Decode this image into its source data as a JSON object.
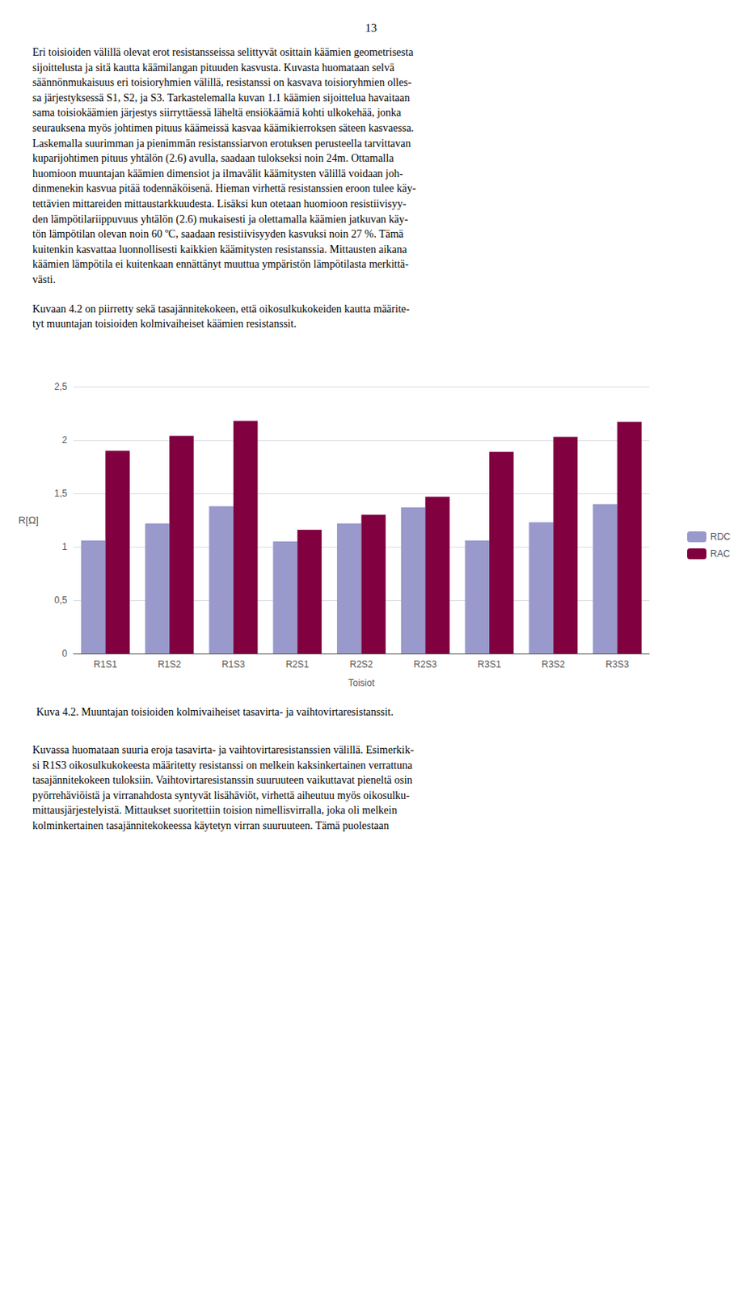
{
  "page_number": "13",
  "paragraphs_before": [
    "Eri toisioiden välillä olevat erot resistansseissa selittyvät osittain käämien geometrisesta\nsijoittelusta ja sitä kautta käämilangan pituuden kasvusta. Kuvasta huomataan selvä\nsäännönmukaisuus eri toisioryhmien välillä, resistanssi on kasvava toisioryhmien olles-\nsa järjestyksessä S1, S2, ja S3. Tarkastelemalla kuvan 1.1 käämien sijoittelua havaitaan\nsama toisiokäämien järjestys siirryttäessä läheltä ensiökäämiä kohti ulkokehää, jonka\nseurauksena myös johtimen pituus käämeissä kasvaa käämikierroksen säteen kasvaessa.\nLaskemalla suurimman ja pienimmän resistanssiarvon erotuksen perusteella tarvittavan\nkuparijohtimen pituus yhtälön (2.6) avulla, saadaan tulokseksi noin 24m. Ottamalla\nhuomioon muuntajan käämien dimensiot ja ilmavälit käämitysten välillä voidaan joh-\ndinmenekin kasvua pitää todennäköisenä. Hieman virhettä resistanssien eroon tulee käy-\ntettävien mittareiden mittaustarkkuudesta. Lisäksi kun otetaan huomioon resistiivisyy-\nden lämpötilariippuvuus yhtälön (2.6) mukaisesti ja olettamalla käämien jatkuvan käy-\ntön lämpötilan olevan noin 60 ºC, saadaan resistiivisyyden kasvuksi noin 27 %. Tämä\nkuitenkin kasvattaa luonnollisesti kaikkien käämitysten resistanssia. Mittausten aikana\nkäämien lämpötila ei kuitenkaan ennättänyt muuttua ympäristön lämpötilasta merkittä-\nvästi.",
    "Kuvaan 4.2 on piirretty sekä tasajännitekokeen, että oikosulkukokeiden kautta määrite-\ntyt muuntajan toisioiden kolmivaiheiset käämien resistanssit."
  ],
  "paragraphs_after": [
    "Kuvassa huomataan suuria eroja tasavirta- ja vaihtovirtaresistanssien välillä. Esimerkik-\nsi R1S3 oikosulkukokeesta määritetty resistanssi on melkein kaksinkertainen verrattuna\ntasajännitekokeen tuloksiin. Vaihtovirtaresistanssin suuruuteen vaikuttavat pieneltä osin\npyörrehäviöistä ja virranahdosta syntyvät lisähäviöt, virhettä aiheutuu myös oikosulku-\nmittausjärjestelyistä. Mittaukset suoritettiin toision nimellisvirralla, joka oli melkein\nkolminkertainen tasajännitekokeessa käytetyn virran suuruuteen. Tämä puolestaan"
  ],
  "chart_data": {
    "type": "bar",
    "title": "Kuva 4.2. Muuntajan toisioiden kolmivaiheiset tasavirta- ja vaihtovirtaresistanssit.",
    "xlabel": "Toisiot",
    "ylabel": "R[Ω]",
    "categories": [
      "R1S1",
      "R1S2",
      "R1S3",
      "R2S1",
      "R2S2",
      "R2S3",
      "R3S1",
      "R3S2",
      "R3S3"
    ],
    "series": [
      {
        "name": "RDC",
        "color": "#9999CC",
        "values": [
          1.06,
          1.22,
          1.38,
          1.05,
          1.22,
          1.37,
          1.06,
          1.23,
          1.4
        ]
      },
      {
        "name": "RAC",
        "color": "#800040",
        "values": [
          1.9,
          2.04,
          2.18,
          1.16,
          1.3,
          1.47,
          1.89,
          2.03,
          2.17
        ]
      }
    ],
    "ylim": [
      0,
      2.5
    ],
    "yticks": [
      0,
      {
        "value": 0.5,
        "label": "0,5"
      },
      1,
      {
        "value": 1.5,
        "label": "1,5"
      },
      2,
      {
        "value": 2.5,
        "label": "2,5"
      }
    ],
    "grid": true,
    "legend": "right"
  }
}
